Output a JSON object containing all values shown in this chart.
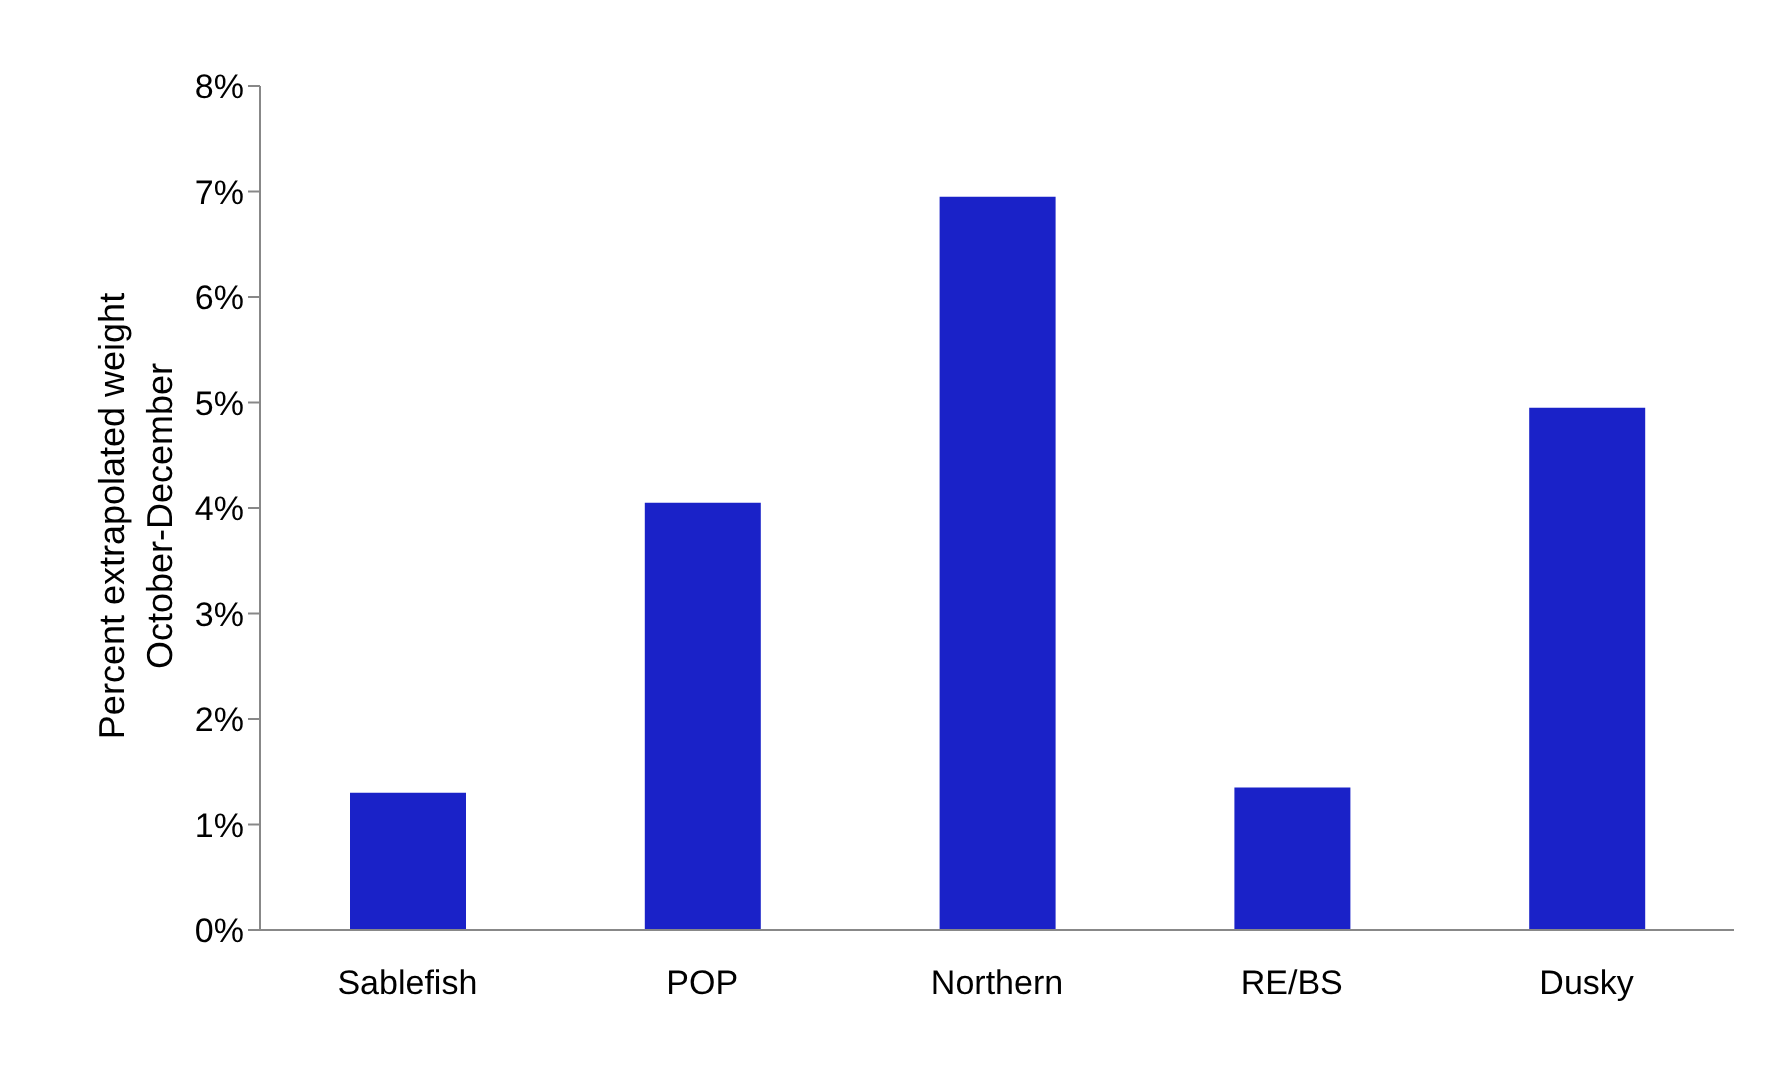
{
  "chart_data": {
    "type": "bar",
    "ylabel": "Percent extrapolated weight\nOctober-December",
    "categories": [
      "Sablefish",
      "POP",
      "Northern",
      "RE/BS",
      "Dusky"
    ],
    "values": [
      1.3,
      4.05,
      6.95,
      1.35,
      4.95
    ],
    "color": "#1a22c8",
    "ylim": [
      0,
      8
    ],
    "yticks": [
      {
        "value": 0,
        "label": "0%"
      },
      {
        "value": 1,
        "label": "1%"
      },
      {
        "value": 2,
        "label": "2%"
      },
      {
        "value": 3,
        "label": "3%"
      },
      {
        "value": 4,
        "label": "4%"
      },
      {
        "value": 5,
        "label": "5%"
      },
      {
        "value": 6,
        "label": "6%"
      },
      {
        "value": 7,
        "label": "7%"
      },
      {
        "value": 8,
        "label": "8%"
      }
    ],
    "grid": false,
    "legend": false
  }
}
